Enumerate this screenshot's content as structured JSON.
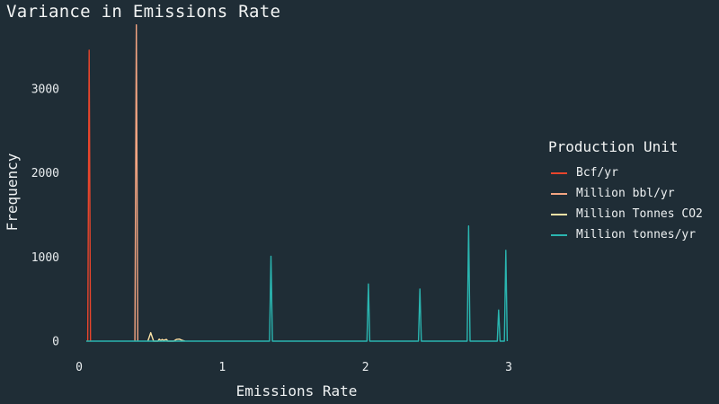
{
  "chart_data": {
    "type": "line",
    "title": "Variance in Emissions Rate",
    "xlabel": "Emissions Rate",
    "ylabel": "Frequency",
    "xlim": [
      0,
      3
    ],
    "ylim": [
      0,
      3800
    ],
    "x_ticks": [
      0,
      1,
      2,
      3
    ],
    "y_ticks": [
      0,
      1000,
      2000,
      3000
    ],
    "x_tick_labels": [
      "0",
      "1",
      "2",
      "3"
    ],
    "y_tick_labels": [
      "0",
      "1000",
      "2000",
      "3000"
    ],
    "grid": false,
    "legend": {
      "title": "Production Unit",
      "placement": "right"
    },
    "series": [
      {
        "name": "Bcf/yr",
        "color": "#e8452c",
        "points": [
          [
            0.06,
            0
          ],
          [
            0.07,
            3460
          ],
          [
            0.08,
            0
          ]
        ]
      },
      {
        "name": "Million bbl/yr",
        "color": "#f4a582",
        "points": [
          [
            0.39,
            0
          ],
          [
            0.4,
            3760
          ],
          [
            0.41,
            0
          ]
        ]
      },
      {
        "name": "Million Tonnes CO2",
        "color": "#fbe3a6",
        "points": [
          [
            0.48,
            0
          ],
          [
            0.5,
            100
          ],
          [
            0.52,
            0
          ],
          [
            0.55,
            0
          ],
          [
            0.56,
            25
          ],
          [
            0.57,
            5
          ],
          [
            0.58,
            20
          ],
          [
            0.59,
            10
          ],
          [
            0.61,
            20
          ],
          [
            0.62,
            0
          ],
          [
            0.66,
            0
          ],
          [
            0.68,
            20
          ],
          [
            0.7,
            25
          ],
          [
            0.72,
            10
          ],
          [
            0.74,
            0
          ]
        ]
      },
      {
        "name": "Million tonnes/yr",
        "color": "#2ab5b0",
        "points": [
          [
            0.05,
            0
          ],
          [
            1.33,
            0
          ],
          [
            1.34,
            1010
          ],
          [
            1.35,
            0
          ],
          [
            2.01,
            0
          ],
          [
            2.02,
            680
          ],
          [
            2.03,
            0
          ],
          [
            2.37,
            0
          ],
          [
            2.38,
            620
          ],
          [
            2.39,
            0
          ],
          [
            2.71,
            0
          ],
          [
            2.72,
            1370
          ],
          [
            2.73,
            0
          ],
          [
            2.92,
            0
          ],
          [
            2.93,
            370
          ],
          [
            2.94,
            0
          ],
          [
            2.97,
            0
          ],
          [
            2.98,
            1080
          ],
          [
            2.99,
            0
          ]
        ]
      }
    ]
  }
}
